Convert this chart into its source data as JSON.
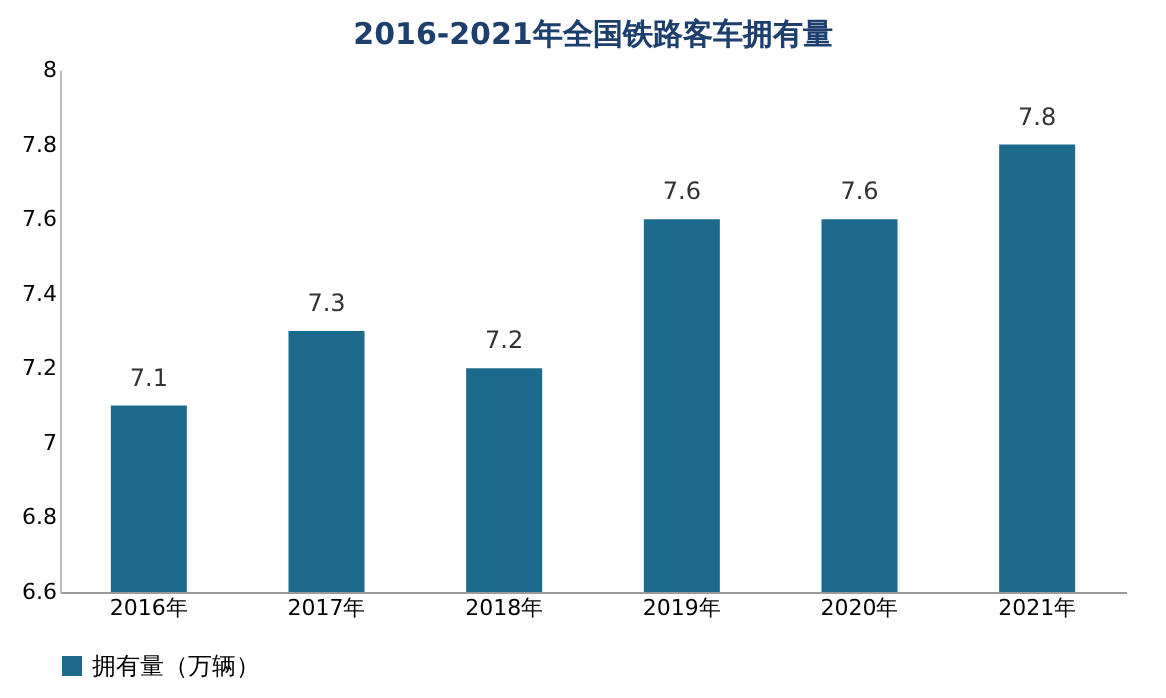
{
  "chart_data": {
    "type": "bar",
    "title": "2016-2021年全国铁路客车拥有量",
    "categories": [
      "2016年",
      "2017年",
      "2018年",
      "2019年",
      "2020年",
      "2021年"
    ],
    "series": [
      {
        "name": "拥有量（万辆）",
        "color": "#1c6b8d",
        "values": [
          7.1,
          7.3,
          7.2,
          7.6,
          7.6,
          7.8
        ]
      }
    ],
    "ylim": [
      6.6,
      8
    ],
    "yticks": [
      6.6,
      6.8,
      7,
      7.2,
      7.4,
      7.6,
      7.8,
      8
    ],
    "grid": false,
    "legend": "bottom",
    "data_labels": true
  }
}
